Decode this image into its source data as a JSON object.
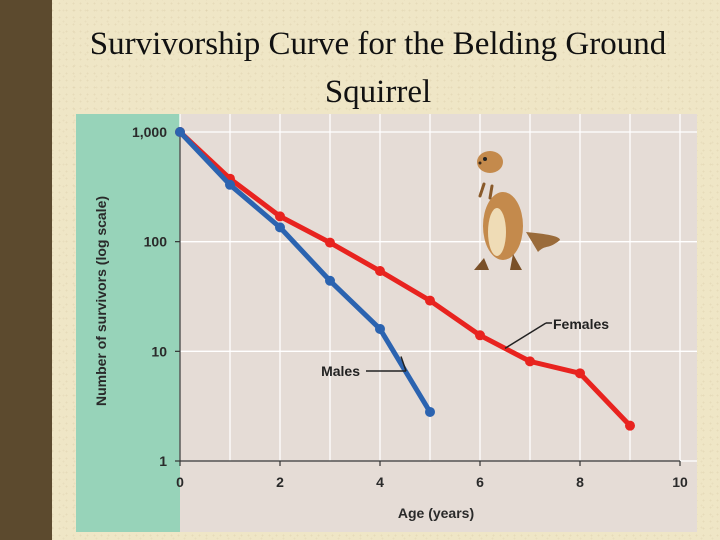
{
  "slide": {
    "title_line1": "Survivorship Curve for the Belding Ground",
    "title_line2": "Squirrel"
  },
  "chart_data": {
    "type": "line",
    "title": "",
    "xlabel": "Age (years)",
    "ylabel": "Number of survivors (log scale)",
    "yscale": "log",
    "xlim": [
      0,
      10
    ],
    "ylim": [
      1,
      1000
    ],
    "xticks": [
      0,
      2,
      4,
      6,
      8,
      10
    ],
    "xtick_labels": [
      "0",
      "2",
      "4",
      "6",
      "8",
      "10"
    ],
    "yticks": [
      1,
      10,
      100,
      1000
    ],
    "ytick_labels": [
      "1",
      "10",
      "100",
      "1,000"
    ],
    "grid": true,
    "series": [
      {
        "name": "Females",
        "color": "#e8231f",
        "x": [
          0,
          1,
          2,
          3,
          4,
          5,
          6,
          7,
          8,
          9
        ],
        "y": [
          1000,
          375,
          170,
          98,
          54,
          29,
          14,
          8.1,
          6.3,
          2.1
        ]
      },
      {
        "name": "Males",
        "color": "#2b63b0",
        "x": [
          0,
          1,
          2,
          3,
          4,
          5
        ],
        "y": [
          1000,
          330,
          135,
          44,
          16,
          2.8
        ]
      }
    ]
  },
  "illustration": {
    "icon": "ground-squirrel"
  }
}
